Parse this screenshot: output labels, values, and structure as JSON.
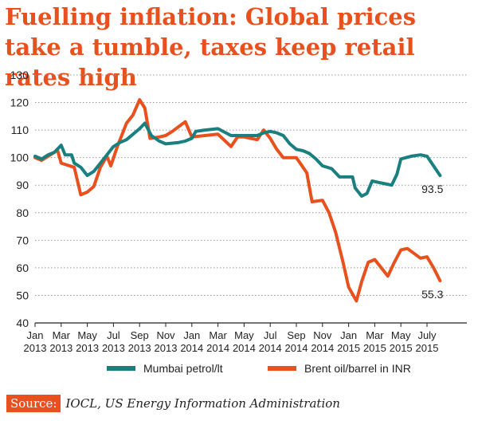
{
  "colors": {
    "accent": "#e8501e",
    "petrol": "#1a7f7f",
    "brent": "#e8501e",
    "grid": "#999999",
    "text": "#222222"
  },
  "chart_data": {
    "type": "line",
    "title": "Fuelling inflation: Global prices take a tumble, taxes keep retail rates high",
    "xlabel": "",
    "ylabel": "",
    "ylim": [
      40,
      130
    ],
    "yticks": [
      40,
      50,
      60,
      70,
      80,
      90,
      100,
      110,
      120,
      130
    ],
    "grid": "horizontal-dotted",
    "xlim": [
      0,
      31
    ],
    "xticks": [
      {
        "x": 0,
        "month": "Jan",
        "year": "2013"
      },
      {
        "x": 2,
        "month": "Mar",
        "year": "2013"
      },
      {
        "x": 4,
        "month": "May",
        "year": "2013"
      },
      {
        "x": 6,
        "month": "Jul",
        "year": "2013"
      },
      {
        "x": 8,
        "month": "Sep",
        "year": "2013"
      },
      {
        "x": 10,
        "month": "Nov",
        "year": "2013"
      },
      {
        "x": 12,
        "month": "Jan",
        "year": "2014"
      },
      {
        "x": 14,
        "month": "Mar",
        "year": "2014"
      },
      {
        "x": 16,
        "month": "May",
        "year": "2014"
      },
      {
        "x": 18,
        "month": "Jul",
        "year": "2014"
      },
      {
        "x": 20,
        "month": "Sep",
        "year": "2014"
      },
      {
        "x": 22,
        "month": "Nov",
        "year": "2014"
      },
      {
        "x": 24,
        "month": "Jan",
        "year": "2015"
      },
      {
        "x": 26,
        "month": "Mar",
        "year": "2015"
      },
      {
        "x": 28,
        "month": "May",
        "year": "2015"
      },
      {
        "x": 30,
        "month": "July",
        "year": "2015"
      }
    ],
    "series": [
      {
        "name": "Mumbai petrol/lt",
        "color": "#1a7f7f",
        "end_label": "93.5",
        "points": [
          [
            0,
            100.5
          ],
          [
            0.5,
            99.5
          ],
          [
            1,
            101
          ],
          [
            1.5,
            102
          ],
          [
            2,
            104.5
          ],
          [
            2.3,
            101
          ],
          [
            2.8,
            101
          ],
          [
            3,
            98
          ],
          [
            3.5,
            96.5
          ],
          [
            4,
            93.5
          ],
          [
            4.5,
            95
          ],
          [
            5,
            98
          ],
          [
            5.5,
            101
          ],
          [
            6,
            104
          ],
          [
            6.5,
            105.5
          ],
          [
            7,
            106.5
          ],
          [
            7.5,
            108.5
          ],
          [
            8,
            110.5
          ],
          [
            8.4,
            112.5
          ],
          [
            8.9,
            108
          ],
          [
            9.5,
            106
          ],
          [
            10,
            105
          ],
          [
            11,
            105.5
          ],
          [
            11.5,
            106
          ],
          [
            12,
            107
          ],
          [
            12.3,
            109.5
          ],
          [
            13,
            110
          ],
          [
            14,
            110.5
          ],
          [
            15,
            108
          ],
          [
            16,
            108
          ],
          [
            17,
            108
          ],
          [
            17.5,
            109
          ],
          [
            18,
            109.5
          ],
          [
            18.5,
            109
          ],
          [
            19,
            108
          ],
          [
            19.5,
            105
          ],
          [
            20,
            103
          ],
          [
            20.5,
            102.5
          ],
          [
            21,
            101.5
          ],
          [
            21.5,
            99.5
          ],
          [
            22,
            97
          ],
          [
            22.7,
            96
          ],
          [
            23.3,
            93
          ],
          [
            24,
            93
          ],
          [
            24.3,
            93
          ],
          [
            24.5,
            89
          ],
          [
            25,
            86
          ],
          [
            25.4,
            87
          ],
          [
            25.8,
            91.5
          ],
          [
            26.3,
            91
          ],
          [
            26.8,
            90.5
          ],
          [
            27.3,
            90
          ],
          [
            27.7,
            94
          ],
          [
            28,
            99.5
          ],
          [
            28.8,
            100.5
          ],
          [
            29.5,
            101
          ],
          [
            30,
            100.5
          ],
          [
            30.5,
            97
          ],
          [
            31,
            93.5
          ]
        ]
      },
      {
        "name": "Brent oil/barrel in INR",
        "color": "#e8501e",
        "end_label": "55.3",
        "points": [
          [
            0,
            100
          ],
          [
            0.5,
            99
          ],
          [
            1,
            100.5
          ],
          [
            1.5,
            102
          ],
          [
            1.7,
            103
          ],
          [
            2,
            98
          ],
          [
            3,
            96.5
          ],
          [
            3.5,
            86.5
          ],
          [
            4,
            87.5
          ],
          [
            4.5,
            89.5
          ],
          [
            5,
            96.5
          ],
          [
            5.5,
            100.5
          ],
          [
            5.8,
            97
          ],
          [
            6.3,
            104
          ],
          [
            7,
            112.5
          ],
          [
            7.5,
            115.5
          ],
          [
            8,
            121
          ],
          [
            8.4,
            118
          ],
          [
            8.8,
            107
          ],
          [
            9.5,
            107.5
          ],
          [
            10,
            108
          ],
          [
            10.5,
            109.5
          ],
          [
            11.5,
            113
          ],
          [
            12,
            107.5
          ],
          [
            13,
            108
          ],
          [
            14,
            108.5
          ],
          [
            15,
            104
          ],
          [
            15.5,
            107.5
          ],
          [
            16,
            107.5
          ],
          [
            17,
            106.5
          ],
          [
            17.5,
            110
          ],
          [
            18,
            107
          ],
          [
            18.5,
            103
          ],
          [
            19,
            100
          ],
          [
            20,
            100
          ],
          [
            20.8,
            94.5
          ],
          [
            21.2,
            84
          ],
          [
            22,
            84.5
          ],
          [
            22.5,
            80
          ],
          [
            23,
            73
          ],
          [
            23.6,
            61.5
          ],
          [
            24,
            53
          ],
          [
            24.6,
            48
          ],
          [
            25,
            55
          ],
          [
            25.5,
            62
          ],
          [
            26,
            63
          ],
          [
            26.5,
            60
          ],
          [
            27,
            57
          ],
          [
            27.5,
            62
          ],
          [
            28,
            66.5
          ],
          [
            28.5,
            67
          ],
          [
            29.5,
            63.5
          ],
          [
            30,
            64
          ],
          [
            30.5,
            60
          ],
          [
            31,
            55.3
          ]
        ]
      }
    ]
  },
  "legend": {
    "petrol": "Mumbai petrol/lt",
    "brent": "Brent oil/barrel in INR"
  },
  "source": {
    "label": "Source:",
    "text": "IOCL, US Energy Information Administration"
  }
}
